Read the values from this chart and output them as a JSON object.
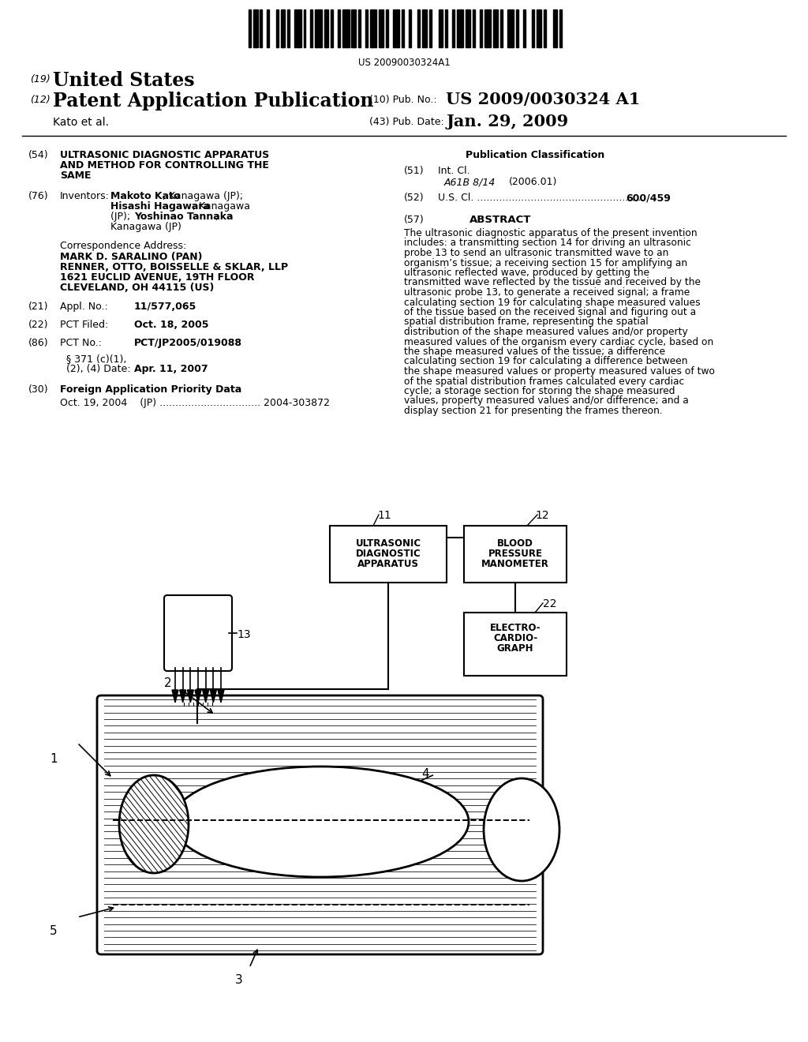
{
  "bg_color": "#ffffff",
  "barcode_text": "US 20090030324A1",
  "abstract_text": "The ultrasonic diagnostic apparatus of the present invention includes: a transmitting section 14 for driving an ultrasonic probe 13 to send an ultrasonic transmitted wave to an organism’s tissue; a receiving section 15 for amplifying an ultrasonic reflected wave, produced by getting the transmitted wave reflected by the tissue and received by the ultrasonic probe 13, to generate a received signal; a frame calculating section 19 for calculating shape measured values of the tissue based on the received signal and figuring out a spatial distribution frame, representing the spatial distribution of the shape measured values and/or property measured values of the organism every cardiac cycle, based on the shape measured values of the tissue; a difference calculating section 19 for calculating a difference between the shape measured values or property measured values of two of the spatial distribution frames calculated every cardiac cycle; a storage section for storing the shape measured values, property measured values and/or difference; and a display section 21 for presenting the frames thereon."
}
